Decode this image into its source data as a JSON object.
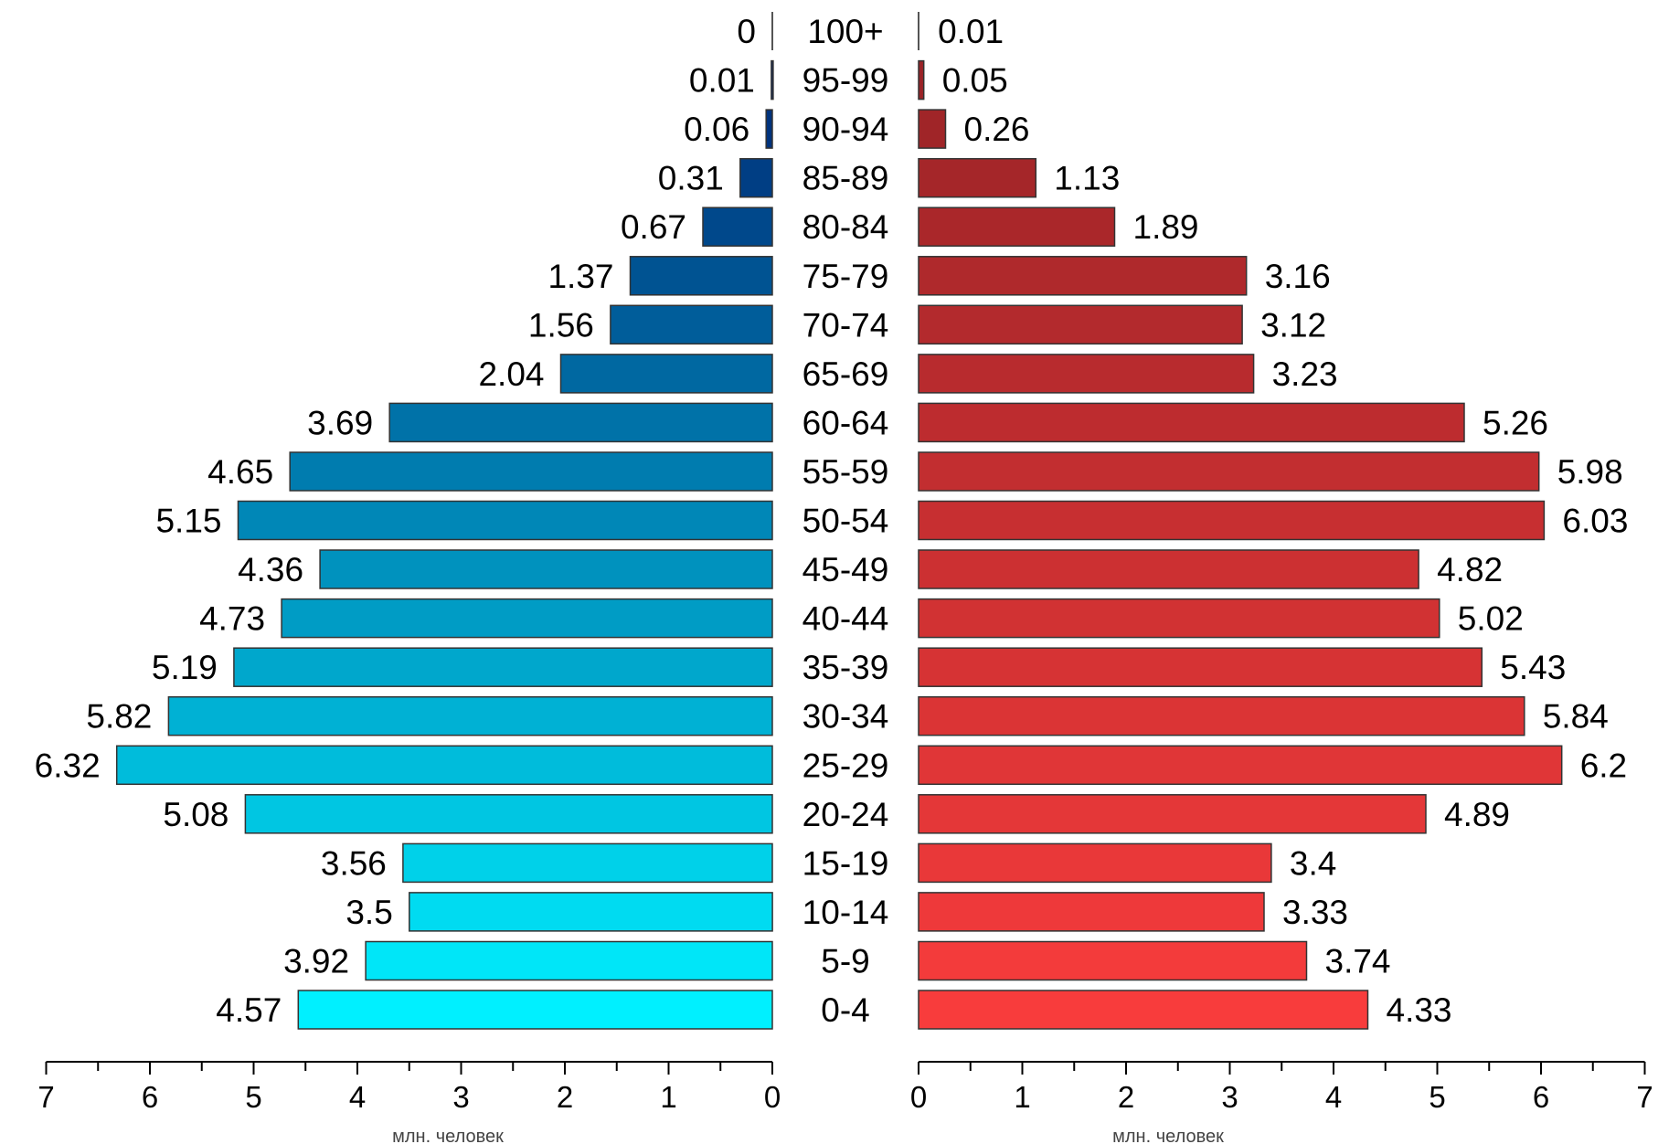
{
  "chart_data": {
    "type": "bar",
    "subtype": "population-pyramid",
    "categories": [
      "0-4",
      "5-9",
      "10-14",
      "15-19",
      "20-24",
      "25-29",
      "30-34",
      "35-39",
      "40-44",
      "45-49",
      "50-54",
      "55-59",
      "60-64",
      "65-69",
      "70-74",
      "75-79",
      "80-84",
      "85-89",
      "90-94",
      "95-99",
      "100+"
    ],
    "series": [
      {
        "side": "left",
        "values": [
          4.57,
          3.92,
          3.5,
          3.56,
          5.08,
          6.32,
          5.82,
          5.19,
          4.73,
          4.36,
          5.15,
          4.65,
          3.69,
          2.04,
          1.56,
          1.37,
          0.67,
          0.31,
          0.06,
          0.01,
          0
        ],
        "color_bottom": "#00f0ff",
        "color_top": "#001e6e"
      },
      {
        "side": "right",
        "values": [
          4.33,
          3.74,
          3.33,
          3.4,
          4.89,
          6.2,
          5.84,
          5.43,
          5.02,
          4.82,
          6.03,
          5.98,
          5.26,
          3.23,
          3.12,
          3.16,
          1.89,
          1.13,
          0.26,
          0.05,
          0.01
        ],
        "color_bottom": "#f83c3c",
        "color_top": "#962226"
      }
    ],
    "xlim": [
      0,
      7
    ],
    "x_ticks": [
      "7",
      "6",
      "5",
      "4",
      "3",
      "2",
      "1",
      "0"
    ],
    "x_ticks_right": [
      "0",
      "1",
      "2",
      "3",
      "4",
      "5",
      "6",
      "7"
    ],
    "xlabel_left": "млн. человек",
    "xlabel_right": "млн. человек",
    "grid": false,
    "legend": "none"
  }
}
